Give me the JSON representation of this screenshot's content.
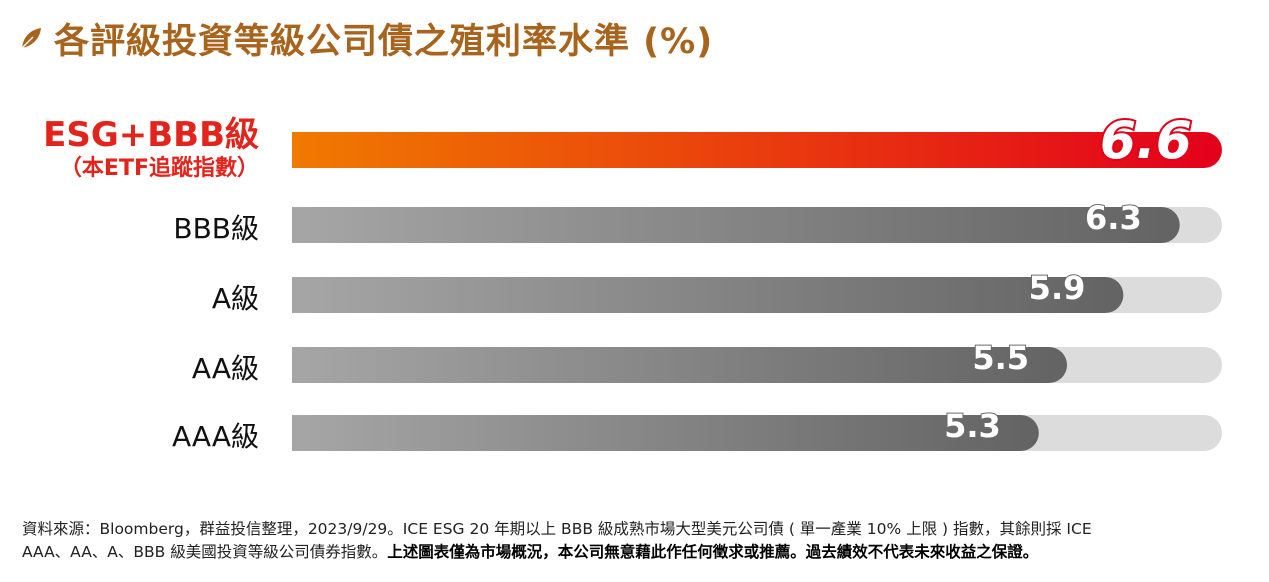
{
  "title": "各評級投資等級公司債之殖利率水準 (%)",
  "chart_data": {
    "type": "bar",
    "orientation": "horizontal",
    "title": "各評級投資等級公司債之殖利率水準 (%)",
    "unit": "%",
    "xlim": [
      0,
      6.6
    ],
    "categories": [
      {
        "label": "ESG+BBB級",
        "sublabel": "（本ETF追蹤指數）",
        "value": 6.6,
        "display": "6.6",
        "highlight": true
      },
      {
        "label": "BBB級",
        "value": 6.3,
        "display": "6.3",
        "highlight": false
      },
      {
        "label": "A級",
        "value": 5.9,
        "display": "5.9",
        "highlight": false
      },
      {
        "label": "AA級",
        "value": 5.5,
        "display": "5.5",
        "highlight": false
      },
      {
        "label": "AAA級",
        "value": 5.3,
        "display": "5.3",
        "highlight": false
      }
    ],
    "colors": {
      "highlight_start": "#f07a00",
      "highlight_end": "#e3001b",
      "bar_start": "#a6a6a6",
      "bar_end": "#636363",
      "track": "#dcdcdc",
      "label_highlight": "#e2241c"
    }
  },
  "footnote": {
    "line1": "資料來源：Bloomberg，群益投信整理，2023/9/29。ICE ESG 20 年期以上 BBB 級成熟市場大型美元公司債 ( 單一產業 10% 上限 ) 指數，其餘則採 ICE",
    "line2_normal": "AAA、AA、A、BBB 級美國投資等級公司債券指數。",
    "line2_bold": "上述圖表僅為市場概況，本公司無意藉此作任何徵求或推薦。過去績效不代表未來收益之保證。"
  }
}
